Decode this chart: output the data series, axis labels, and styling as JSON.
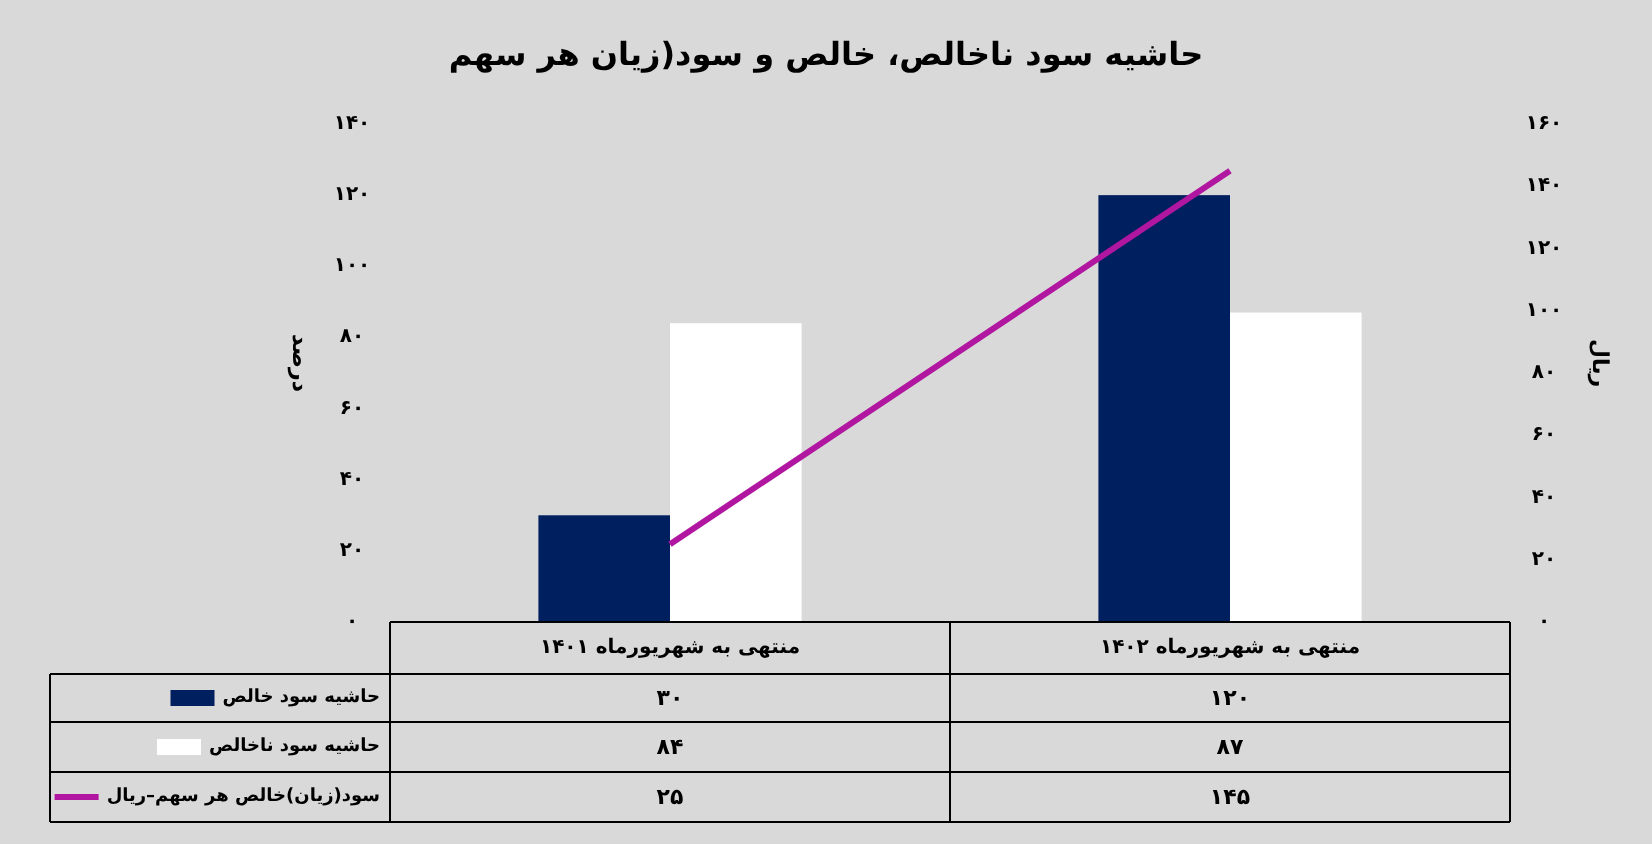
{
  "chart_data": {
    "type": "bar",
    "title": "حاشیه سود ناخالص، خالص و سود(زیان هر سهم",
    "categories": [
      "منتهی به شهریورماه ۱۴۰۱",
      "منتهی به شهریورماه ۱۴۰۲"
    ],
    "series": [
      {
        "name": "حاشیه سود خالص",
        "color": "#001f5f",
        "values": [
          30,
          120
        ],
        "value_labels": [
          "۳۰",
          "۱۲۰"
        ]
      },
      {
        "name": "حاشیه سود ناخالص",
        "color": "#ffffff",
        "values": [
          84,
          87
        ],
        "value_labels": [
          "۸۴",
          "۸۷"
        ]
      },
      {
        "name": "سود(زیان)خالص هر سهم–ریال",
        "type": "line",
        "axis": "y2",
        "color": "#b0169f",
        "values": [
          25,
          145
        ],
        "value_labels": [
          "۲۵",
          "۱۴۵"
        ]
      }
    ],
    "ylabel": "درصد",
    "y2label": "ریال",
    "ylim": [
      0,
      140
    ],
    "yticks": [
      {
        "value": 0,
        "label": "۰"
      },
      {
        "value": 20,
        "label": "۲۰"
      },
      {
        "value": 40,
        "label": "۴۰"
      },
      {
        "value": 60,
        "label": "۶۰"
      },
      {
        "value": 80,
        "label": "۸۰"
      },
      {
        "value": 100,
        "label": "۱۰۰"
      },
      {
        "value": 120,
        "label": "۱۲۰"
      },
      {
        "value": 140,
        "label": "۱۴۰"
      }
    ],
    "y2lim": [
      0,
      160
    ],
    "y2ticks": [
      {
        "value": 0,
        "label": "۰"
      },
      {
        "value": 20,
        "label": "۲۰"
      },
      {
        "value": 40,
        "label": "۴۰"
      },
      {
        "value": 60,
        "label": "۶۰"
      },
      {
        "value": 80,
        "label": "۸۰"
      },
      {
        "value": 100,
        "label": "۱۰۰"
      },
      {
        "value": 120,
        "label": "۱۲۰"
      },
      {
        "value": 140,
        "label": "۱۴۰"
      },
      {
        "value": 160,
        "label": "۱۶۰"
      }
    ],
    "legend": "bottom",
    "grid": false
  }
}
